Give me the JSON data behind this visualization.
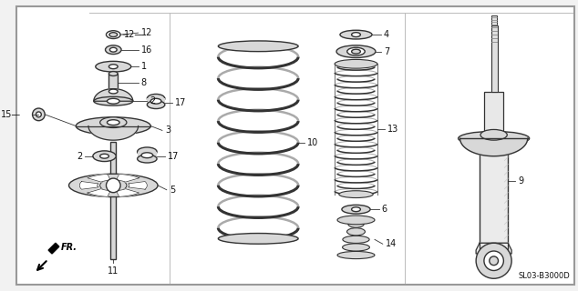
{
  "bg_color": "#f2f2f2",
  "border_color": "#999999",
  "line_color": "#333333",
  "part_color": "#d8d8d8",
  "part_edge_color": "#333333",
  "text_color": "#111111",
  "diagram_code": "SL03-B3000D",
  "fr_label": "FR.",
  "figsize": [
    6.34,
    3.2
  ],
  "dpi": 100
}
